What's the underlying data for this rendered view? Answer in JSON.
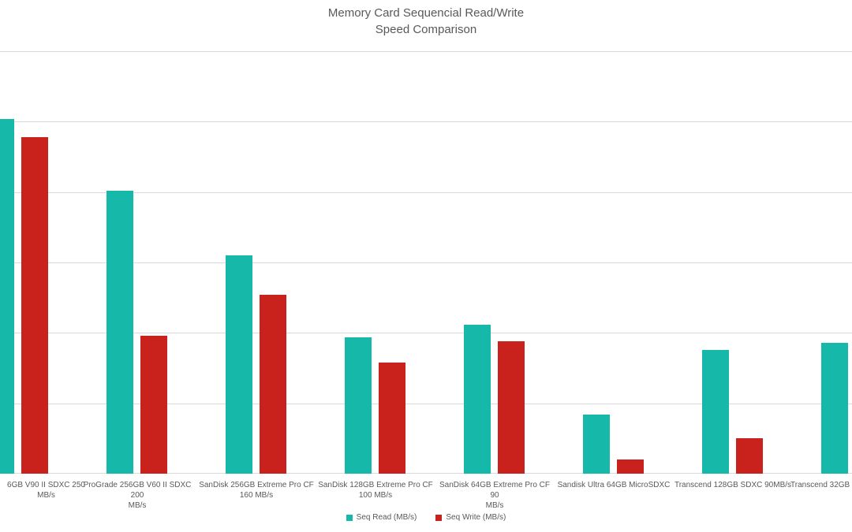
{
  "title": {
    "line1": "Memory Card Sequencial Read/Write",
    "line2": "Speed Comparison"
  },
  "chart_data": {
    "type": "bar",
    "title": "Memory Card Sequencial Read/Write Speed Comparison",
    "categories": [
      "6GB  V90 II SDXC 250\nMB/s",
      "ProGrade 256GB V60 II SDXC 200\nMB/s",
      "SanDisk 256GB Extreme Pro CF\n160 MB/s",
      "SanDisk 128GB Extreme Pro CF\n100 MB/s",
      "SanDisk 64GB Extreme Pro CF 90\nMB/s",
      "Sandisk Ultra 64GB MicroSDXC",
      "Transcend 128GB SDXC 90MB/s",
      "Transcend 32GB"
    ],
    "series": [
      {
        "name": "Seq Read (MB/s)",
        "color": "#15b8a9",
        "values": [
          252,
          201,
          155,
          97,
          106,
          42,
          88,
          93
        ]
      },
      {
        "name": "Seq Write (MB/s)",
        "color": "#c9211c",
        "values": [
          239,
          98,
          127,
          79,
          94,
          10,
          25,
          null
        ]
      }
    ],
    "xlabel": "",
    "ylabel": "",
    "ylim": [
      0,
      300
    ],
    "y_major_unit": 50,
    "y_tick_labels_visible": false,
    "grid": true,
    "gridline_color": "#d9d9d9",
    "legend_position": "bottom"
  },
  "legend": {
    "read_label": "Seq Read (MB/s)",
    "write_label": "Seq Write (MB/s)"
  }
}
